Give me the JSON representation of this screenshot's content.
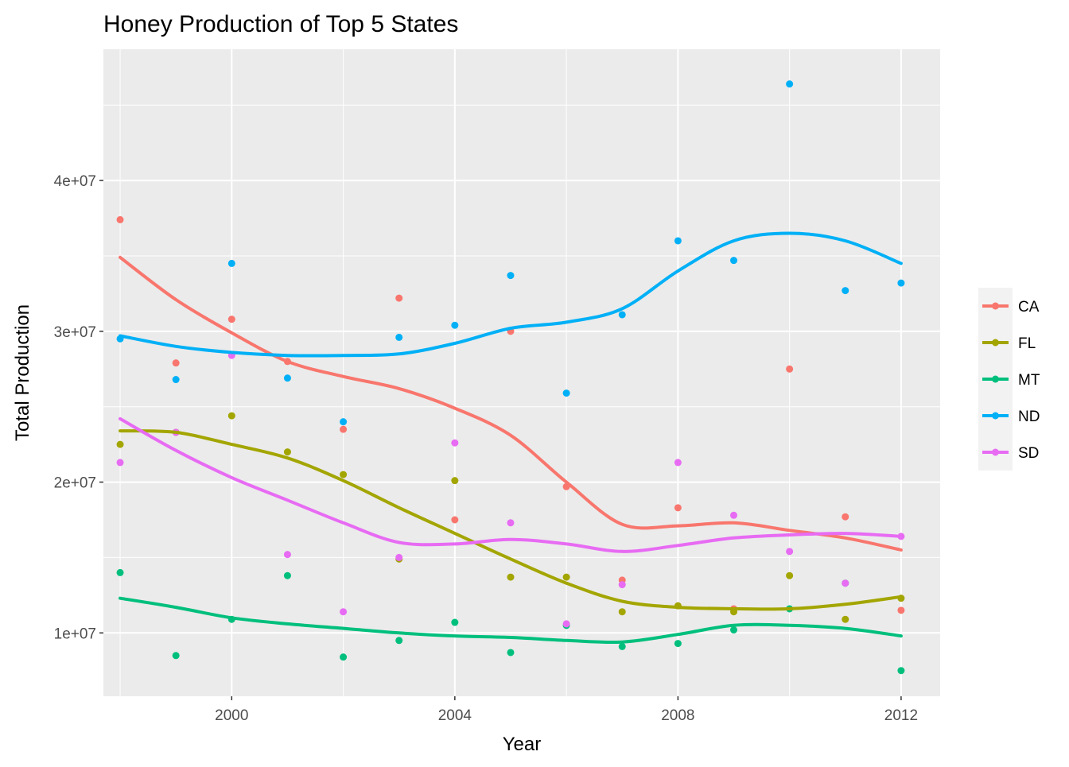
{
  "chart_data": {
    "type": "scatter",
    "title": "Honey Production of Top 5 States",
    "xlabel": "Year",
    "ylabel": "Total Production",
    "xlim": [
      1997.7,
      2012.7
    ],
    "ylim": [
      5800000,
      48700000
    ],
    "x_ticks": [
      2000,
      2004,
      2008,
      2012
    ],
    "x_tick_labels": [
      "2000",
      "2004",
      "2008",
      "2012"
    ],
    "y_ticks": [
      10000000,
      20000000,
      30000000,
      40000000
    ],
    "y_tick_labels": [
      "1e+07",
      "2e+07",
      "3e+07",
      "4e+07"
    ],
    "x_minor": [
      1998,
      2002,
      2006,
      2010
    ],
    "y_minor": [
      15000000,
      25000000,
      35000000,
      45000000
    ],
    "grid": true,
    "legend_position": "right",
    "series": [
      {
        "name": "CA",
        "color": "#F8766D",
        "points": [
          [
            1998,
            37400000
          ],
          [
            1999,
            27900000
          ],
          [
            2000,
            30800000
          ],
          [
            2001,
            28000000
          ],
          [
            2002,
            23500000
          ],
          [
            2003,
            32200000
          ],
          [
            2004,
            17500000
          ],
          [
            2005,
            30000000
          ],
          [
            2006,
            19700000
          ],
          [
            2007,
            13500000
          ],
          [
            2008,
            18300000
          ],
          [
            2009,
            11600000
          ],
          [
            2010,
            27500000
          ],
          [
            2011,
            17700000
          ],
          [
            2012,
            11500000
          ]
        ],
        "smooth": [
          [
            1998,
            34900000
          ],
          [
            1999,
            32100000
          ],
          [
            2000,
            29900000
          ],
          [
            2001,
            28000000
          ],
          [
            2002,
            27000000
          ],
          [
            2003,
            26200000
          ],
          [
            2004,
            24900000
          ],
          [
            2005,
            23100000
          ],
          [
            2006,
            20000000
          ],
          [
            2007,
            17200000
          ],
          [
            2008,
            17100000
          ],
          [
            2009,
            17300000
          ],
          [
            2010,
            16800000
          ],
          [
            2011,
            16300000
          ],
          [
            2012,
            15500000
          ]
        ]
      },
      {
        "name": "FL",
        "color": "#A3A500",
        "points": [
          [
            1998,
            22500000
          ],
          [
            1999,
            23300000
          ],
          [
            2000,
            24400000
          ],
          [
            2001,
            22000000
          ],
          [
            2002,
            20500000
          ],
          [
            2003,
            14900000
          ],
          [
            2004,
            20100000
          ],
          [
            2005,
            13700000
          ],
          [
            2006,
            13700000
          ],
          [
            2007,
            11400000
          ],
          [
            2008,
            11800000
          ],
          [
            2009,
            11400000
          ],
          [
            2010,
            13800000
          ],
          [
            2011,
            10900000
          ],
          [
            2012,
            12300000
          ]
        ],
        "smooth": [
          [
            1998,
            23400000
          ],
          [
            1999,
            23300000
          ],
          [
            2000,
            22500000
          ],
          [
            2001,
            21600000
          ],
          [
            2002,
            20100000
          ],
          [
            2003,
            18300000
          ],
          [
            2004,
            16600000
          ],
          [
            2005,
            14900000
          ],
          [
            2006,
            13300000
          ],
          [
            2007,
            12100000
          ],
          [
            2008,
            11700000
          ],
          [
            2009,
            11600000
          ],
          [
            2010,
            11600000
          ],
          [
            2011,
            11900000
          ],
          [
            2012,
            12400000
          ]
        ]
      },
      {
        "name": "MT",
        "color": "#00BF7D",
        "points": [
          [
            1998,
            14000000
          ],
          [
            1999,
            8500000
          ],
          [
            2000,
            10900000
          ],
          [
            2001,
            13800000
          ],
          [
            2002,
            8400000
          ],
          [
            2003,
            9500000
          ],
          [
            2004,
            10700000
          ],
          [
            2005,
            8700000
          ],
          [
            2006,
            10500000
          ],
          [
            2007,
            9100000
          ],
          [
            2008,
            9300000
          ],
          [
            2009,
            10200000
          ],
          [
            2010,
            11600000
          ],
          [
            2011,
            13300000
          ],
          [
            2012,
            7500000
          ]
        ],
        "smooth": [
          [
            1998,
            12300000
          ],
          [
            1999,
            11700000
          ],
          [
            2000,
            11000000
          ],
          [
            2001,
            10600000
          ],
          [
            2002,
            10300000
          ],
          [
            2003,
            10000000
          ],
          [
            2004,
            9800000
          ],
          [
            2005,
            9700000
          ],
          [
            2006,
            9500000
          ],
          [
            2007,
            9400000
          ],
          [
            2008,
            9900000
          ],
          [
            2009,
            10500000
          ],
          [
            2010,
            10500000
          ],
          [
            2011,
            10300000
          ],
          [
            2012,
            9800000
          ]
        ]
      },
      {
        "name": "ND",
        "color": "#00B0F6",
        "points": [
          [
            1998,
            29500000
          ],
          [
            1999,
            26800000
          ],
          [
            2000,
            34500000
          ],
          [
            2001,
            26900000
          ],
          [
            2002,
            24000000
          ],
          [
            2003,
            29600000
          ],
          [
            2004,
            30400000
          ],
          [
            2005,
            33700000
          ],
          [
            2006,
            25900000
          ],
          [
            2007,
            31100000
          ],
          [
            2008,
            36000000
          ],
          [
            2009,
            34700000
          ],
          [
            2010,
            46400000
          ],
          [
            2011,
            32700000
          ],
          [
            2012,
            33200000
          ]
        ],
        "smooth": [
          [
            1998,
            29700000
          ],
          [
            1999,
            29000000
          ],
          [
            2000,
            28600000
          ],
          [
            2001,
            28400000
          ],
          [
            2002,
            28400000
          ],
          [
            2003,
            28500000
          ],
          [
            2004,
            29200000
          ],
          [
            2005,
            30200000
          ],
          [
            2006,
            30600000
          ],
          [
            2007,
            31500000
          ],
          [
            2008,
            34000000
          ],
          [
            2009,
            36000000
          ],
          [
            2010,
            36500000
          ],
          [
            2011,
            36000000
          ],
          [
            2012,
            34500000
          ]
        ]
      },
      {
        "name": "SD",
        "color": "#E76BF3",
        "points": [
          [
            1998,
            21300000
          ],
          [
            1999,
            23300000
          ],
          [
            2000,
            28400000
          ],
          [
            2001,
            15200000
          ],
          [
            2002,
            11400000
          ],
          [
            2003,
            15000000
          ],
          [
            2004,
            22600000
          ],
          [
            2005,
            17300000
          ],
          [
            2006,
            10600000
          ],
          [
            2007,
            13200000
          ],
          [
            2008,
            21300000
          ],
          [
            2009,
            17800000
          ],
          [
            2010,
            15400000
          ],
          [
            2011,
            13300000
          ],
          [
            2012,
            16400000
          ]
        ],
        "smooth": [
          [
            1998,
            24200000
          ],
          [
            1999,
            22100000
          ],
          [
            2000,
            20300000
          ],
          [
            2001,
            18800000
          ],
          [
            2002,
            17300000
          ],
          [
            2003,
            16000000
          ],
          [
            2004,
            15900000
          ],
          [
            2005,
            16200000
          ],
          [
            2006,
            15900000
          ],
          [
            2007,
            15400000
          ],
          [
            2008,
            15800000
          ],
          [
            2009,
            16300000
          ],
          [
            2010,
            16500000
          ],
          [
            2011,
            16600000
          ],
          [
            2012,
            16400000
          ]
        ]
      }
    ]
  }
}
